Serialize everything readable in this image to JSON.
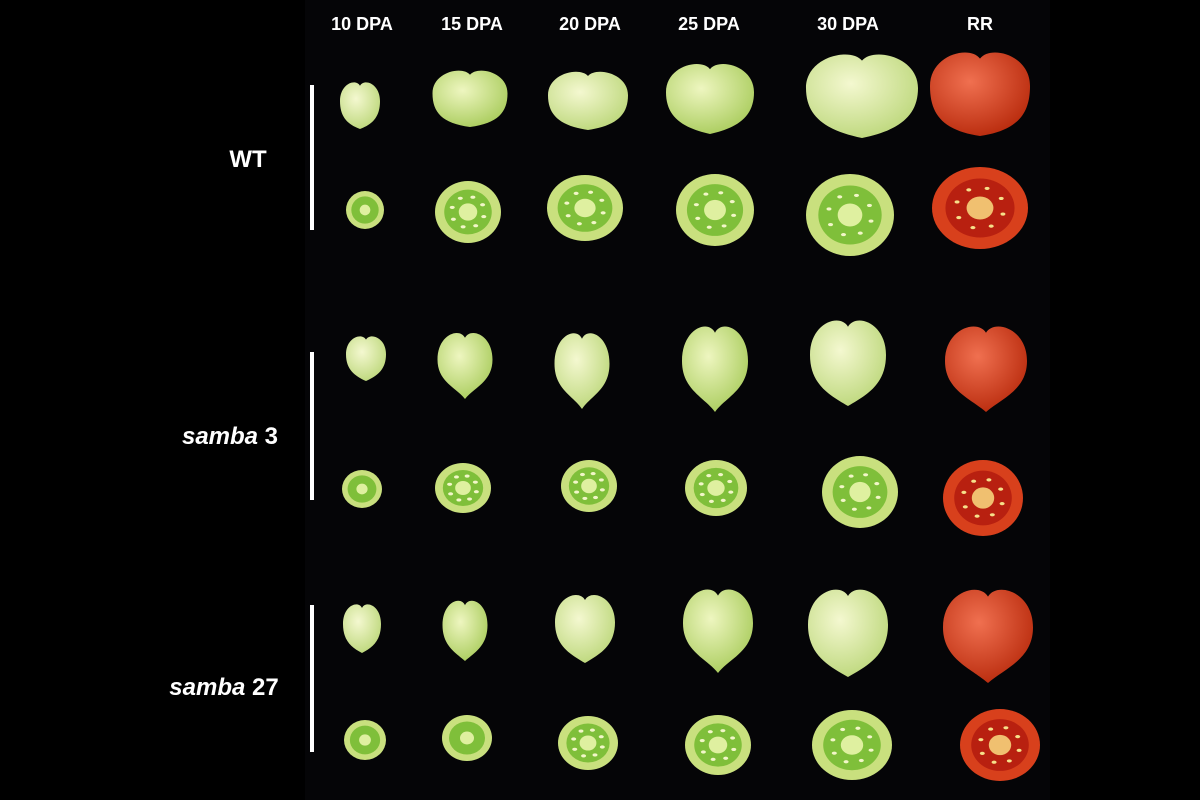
{
  "columns": [
    "10 DPA",
    "15 DPA",
    "20 DPA",
    "25 DPA",
    "30 DPA",
    "RR"
  ],
  "rows": [
    {
      "label_italic": "",
      "label_plain": "WT"
    },
    {
      "label_italic": "samba",
      "label_plain": " 3"
    },
    {
      "label_italic": "samba",
      "label_plain": " 27"
    }
  ],
  "colors": {
    "background": "#000000",
    "green_fruit": "#cfe48e",
    "pale_fruit": "#e2efaa",
    "red_fruit": "#d8401c",
    "cut_green_inner": "#7fbf3a",
    "cut_red_inner": "#b82010"
  }
}
